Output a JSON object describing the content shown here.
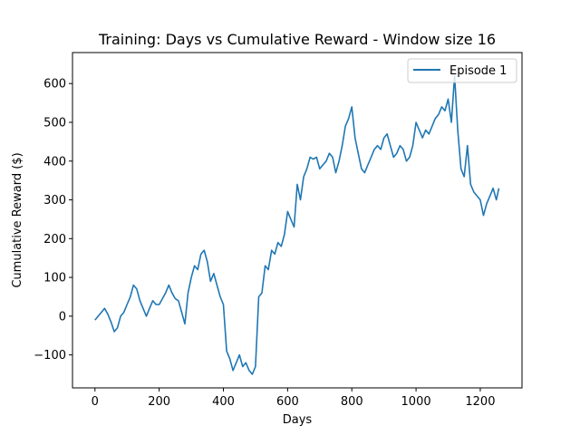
{
  "chart_data": {
    "type": "line",
    "title": "Training: Days vs Cumulative Reward - Window size 16",
    "xlabel": "Days",
    "ylabel": "Cumulative Reward ($)",
    "xlim": [
      -70,
      1330
    ],
    "ylim": [
      -185,
      680
    ],
    "xticks": [
      0,
      200,
      400,
      600,
      800,
      1000,
      1200
    ],
    "yticks": [
      -100,
      0,
      100,
      200,
      300,
      400,
      500,
      600
    ],
    "legend_position": "upper right",
    "series": [
      {
        "name": "Episode 1",
        "color": "#1f77b4",
        "x": [
          0,
          10,
          20,
          30,
          40,
          50,
          60,
          70,
          80,
          90,
          100,
          110,
          120,
          130,
          140,
          150,
          160,
          170,
          180,
          190,
          200,
          210,
          220,
          230,
          240,
          250,
          260,
          270,
          280,
          290,
          300,
          310,
          320,
          330,
          340,
          350,
          360,
          370,
          380,
          390,
          400,
          410,
          420,
          430,
          440,
          450,
          460,
          470,
          480,
          490,
          500,
          510,
          520,
          530,
          540,
          550,
          560,
          570,
          580,
          590,
          600,
          610,
          620,
          630,
          640,
          650,
          660,
          670,
          680,
          690,
          700,
          710,
          720,
          730,
          740,
          750,
          760,
          770,
          780,
          790,
          800,
          810,
          820,
          830,
          840,
          850,
          860,
          870,
          880,
          890,
          900,
          910,
          920,
          930,
          940,
          950,
          960,
          970,
          980,
          990,
          1000,
          1010,
          1020,
          1030,
          1040,
          1050,
          1060,
          1070,
          1080,
          1090,
          1100,
          1110,
          1120,
          1130,
          1140,
          1150,
          1160,
          1170,
          1180,
          1190,
          1200,
          1210,
          1220,
          1230,
          1240,
          1250,
          1258
        ],
        "values": [
          -10,
          0,
          10,
          20,
          5,
          -15,
          -40,
          -30,
          0,
          10,
          30,
          50,
          80,
          70,
          40,
          20,
          0,
          20,
          40,
          30,
          30,
          45,
          60,
          80,
          60,
          45,
          40,
          10,
          -20,
          60,
          100,
          130,
          120,
          160,
          170,
          140,
          90,
          110,
          80,
          50,
          30,
          -90,
          -110,
          -140,
          -120,
          -100,
          -130,
          -120,
          -140,
          -150,
          -130,
          50,
          60,
          130,
          120,
          170,
          160,
          190,
          180,
          210,
          270,
          250,
          230,
          340,
          300,
          360,
          380,
          410,
          405,
          410,
          380,
          390,
          400,
          420,
          410,
          370,
          400,
          440,
          490,
          510,
          540,
          460,
          420,
          380,
          370,
          390,
          410,
          430,
          440,
          430,
          460,
          470,
          440,
          410,
          420,
          440,
          430,
          400,
          410,
          440,
          500,
          480,
          460,
          480,
          470,
          490,
          510,
          520,
          540,
          530,
          560,
          500,
          620,
          480,
          380,
          360,
          440,
          340,
          320,
          310,
          300,
          260,
          290,
          310,
          330,
          300,
          330
        ]
      }
    ]
  }
}
